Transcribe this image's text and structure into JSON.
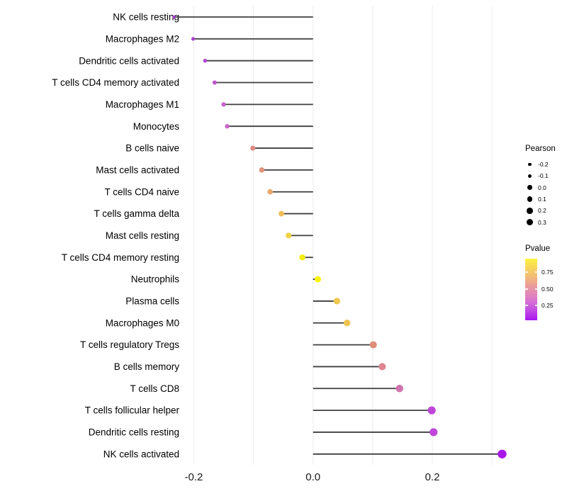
{
  "chart_data": {
    "type": "scatter",
    "variant": "lollipop",
    "orientation": "horizontal",
    "title": "",
    "xlabel": "",
    "ylabel": "",
    "xlim": [
      -0.26,
      0.35
    ],
    "x_tick_labels": [
      "-0.2",
      "0.0",
      "0.2"
    ],
    "x_ticks": [
      -0.2,
      0.0,
      0.2
    ],
    "x_gridlines": [
      -0.2,
      -0.1,
      0.0,
      0.1,
      0.2,
      0.3
    ],
    "grid": "vertical-only",
    "baseline_x": 0.0,
    "size_encoding": "Pearson",
    "color_encoding": "Pvalue",
    "points": [
      {
        "label": "NK cells resting",
        "pearson": -0.233,
        "color": "#A338D0",
        "pvalue_from_color": 0.1
      },
      {
        "label": "Macrophages M2",
        "pearson": -0.201,
        "color": "#AB40D2",
        "pvalue_from_color": 0.13
      },
      {
        "label": "Dendritic cells activated",
        "pearson": -0.181,
        "color": "#B44BD0",
        "pvalue_from_color": 0.16
      },
      {
        "label": "T cells CD4 memory activated",
        "pearson": -0.165,
        "color": "#BD55CB",
        "pvalue_from_color": 0.19
      },
      {
        "label": "Macrophages M1",
        "pearson": -0.15,
        "color": "#C662C8",
        "pvalue_from_color": 0.22
      },
      {
        "label": "Monocytes",
        "pearson": -0.144,
        "color": "#C966C9",
        "pvalue_from_color": 0.23
      },
      {
        "label": "B cells naive",
        "pearson": -0.101,
        "color": "#DD8B80",
        "pvalue_from_color": 0.48
      },
      {
        "label": "Mast cells activated",
        "pearson": -0.086,
        "color": "#E0937A",
        "pvalue_from_color": 0.53
      },
      {
        "label": "T cells CD4 naive",
        "pearson": -0.072,
        "color": "#E7A96A",
        "pvalue_from_color": 0.6
      },
      {
        "label": "T cells gamma delta",
        "pearson": -0.053,
        "color": "#EDBE58",
        "pvalue_from_color": 0.68
      },
      {
        "label": "Mast cells resting",
        "pearson": -0.041,
        "color": "#F0D243",
        "pvalue_from_color": 0.76
      },
      {
        "label": "T cells CD4 memory resting",
        "pearson": -0.018,
        "color": "#F5EC14",
        "pvalue_from_color": 0.86
      },
      {
        "label": "Neutrophils",
        "pearson": 0.008,
        "color": "#F8F500",
        "pvalue_from_color": 0.91
      },
      {
        "label": "Plasma cells",
        "pearson": 0.04,
        "color": "#F0C84D",
        "pvalue_from_color": 0.73
      },
      {
        "label": "Macrophages M0",
        "pearson": 0.057,
        "color": "#EFC351",
        "pvalue_from_color": 0.71
      },
      {
        "label": "T cells regulatory Tregs",
        "pearson": 0.101,
        "color": "#E08D79",
        "pvalue_from_color": 0.5
      },
      {
        "label": "B cells memory",
        "pearson": 0.116,
        "color": "#DD8590",
        "pvalue_from_color": 0.45
      },
      {
        "label": "T cells CD8",
        "pearson": 0.145,
        "color": "#D273B0",
        "pvalue_from_color": 0.35
      },
      {
        "label": "T cells follicular helper",
        "pearson": 0.199,
        "color": "#BE46D8",
        "pvalue_from_color": 0.17
      },
      {
        "label": "Dendritic cells resting",
        "pearson": 0.202,
        "color": "#BE46D8",
        "pvalue_from_color": 0.17
      },
      {
        "label": "NK cells activated",
        "pearson": 0.317,
        "color": "#A818EA",
        "pvalue_from_color": 0.05
      }
    ],
    "legend": {
      "position": "right",
      "size": {
        "title": "Pearson",
        "dot_color": "#000000",
        "items": [
          {
            "label": "-0.2",
            "value": -0.2,
            "diameter": 4.3
          },
          {
            "label": "-0.1",
            "value": -0.1,
            "diameter": 5.7
          },
          {
            "label": "0.0",
            "value": 0.0,
            "diameter": 6.7
          },
          {
            "label": "0.1",
            "value": 0.1,
            "diameter": 7.7
          },
          {
            "label": "0.2",
            "value": 0.2,
            "diameter": 8.7
          },
          {
            "label": "0.3",
            "value": 0.3,
            "diameter": 9.7
          }
        ]
      },
      "color": {
        "title": "Pvalue",
        "gradient_top_to_bottom": [
          "#FBF243",
          "#F4C56C",
          "#E795A3",
          "#D066DC",
          "#A716F0"
        ],
        "items": [
          {
            "label": "0.75",
            "value": 0.75,
            "frac_from_top": 0.218
          },
          {
            "label": "0.50",
            "value": 0.5,
            "frac_from_top": 0.494
          },
          {
            "label": "0.25",
            "value": 0.25,
            "frac_from_top": 0.759
          }
        ]
      }
    },
    "style": {
      "stem_color": "#3f3f3f",
      "grid_color": "#ececec",
      "background": "#ffffff",
      "axis_text_color": "#1a1a1a",
      "category_text_color": "#000000"
    }
  }
}
